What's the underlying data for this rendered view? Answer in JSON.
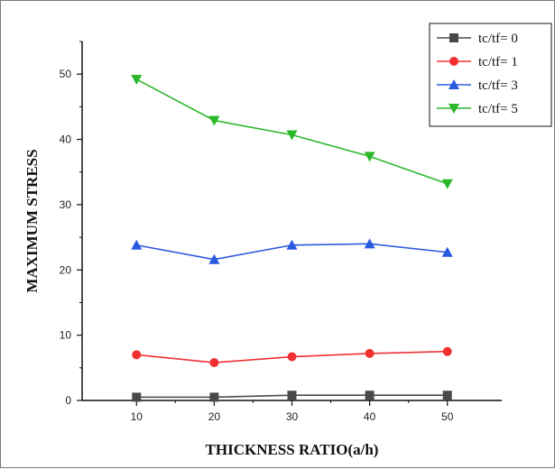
{
  "chart_data": {
    "type": "line",
    "title": "",
    "xlabel": "THICKNESS RATIO(a/h)",
    "ylabel": "MAXIMUM STRESS",
    "x": [
      10,
      20,
      30,
      40,
      50
    ],
    "xlim": [
      3,
      57
    ],
    "ylim": [
      0,
      55
    ],
    "xticks": [
      10,
      20,
      30,
      40,
      50
    ],
    "yticks": [
      0,
      10,
      20,
      30,
      40,
      50
    ],
    "grid": false,
    "legend_position": "top-right",
    "series": [
      {
        "name": "tc/tf= 0",
        "values": [
          0.5,
          0.5,
          0.8,
          0.8,
          0.8
        ],
        "color": "#4a4a4a",
        "marker": "square"
      },
      {
        "name": "tc/tf= 1",
        "values": [
          7.0,
          5.8,
          6.7,
          7.2,
          7.5
        ],
        "color": "#f03030",
        "marker": "circle"
      },
      {
        "name": "tc/tf= 3",
        "values": [
          23.8,
          21.6,
          23.8,
          24.0,
          22.7
        ],
        "color": "#2a5ae0",
        "marker": "triangle-up"
      },
      {
        "name": "tc/tf= 5",
        "values": [
          49.2,
          42.9,
          40.7,
          37.4,
          33.2
        ],
        "color": "#2ab82a",
        "marker": "triangle-down"
      }
    ]
  }
}
